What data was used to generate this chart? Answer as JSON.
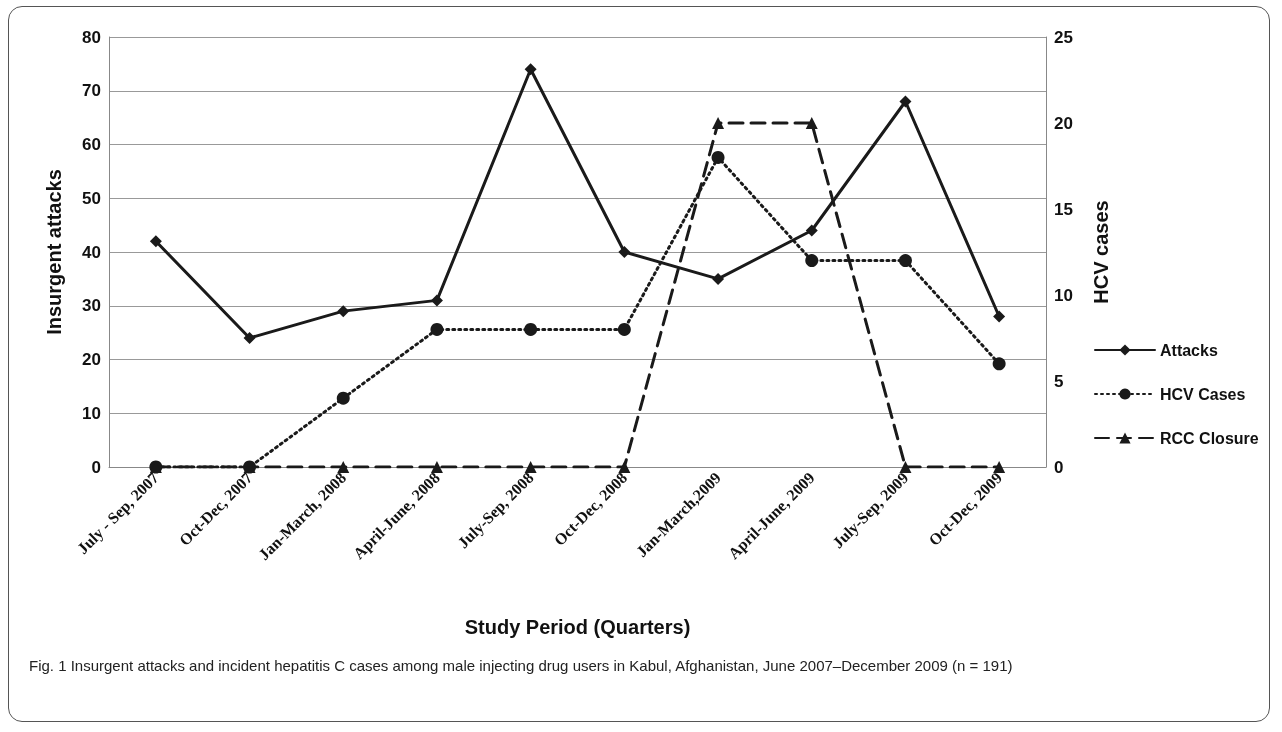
{
  "chart_data": {
    "type": "line",
    "xlabel": "Study Period (Quarters)",
    "ylabel": "Insurgent attacks",
    "y2label": "HCV cases",
    "categories": [
      "July - Sep, 2007",
      "Oct-Dec, 2007",
      "Jan-March, 2008",
      "April-June, 2008",
      "July-Sep, 2008",
      "Oct-Dec, 2008",
      "Jan-March,2009",
      "April-June, 2009",
      "July-Sep, 2009",
      "Oct-Dec, 2009"
    ],
    "series": [
      {
        "name": "Attacks",
        "color": "#1a1a1a",
        "marker": "diamond",
        "line_style": "solid",
        "values": [
          42,
          24,
          29,
          31,
          74,
          40,
          35,
          44,
          68,
          28
        ]
      },
      {
        "name": "HCV Cases",
        "color": "#1a1a1a",
        "marker": "circle",
        "line_style": "dotted",
        "axis": "y2",
        "values": [
          0,
          0,
          4,
          8,
          8,
          8,
          18,
          12,
          12,
          6
        ]
      },
      {
        "name": "RCC Closure",
        "color": "#1a1a1a",
        "marker": "triangle",
        "line_style": "dashed",
        "axis": "y2",
        "values": [
          0,
          0,
          0,
          0,
          0,
          0,
          20,
          20,
          0,
          0
        ]
      }
    ],
    "ylim": [
      0,
      80
    ],
    "yticks": [
      0,
      10,
      20,
      30,
      40,
      50,
      60,
      70,
      80
    ],
    "y2lim": [
      0,
      25
    ],
    "y2ticks": [
      0,
      5,
      10,
      15,
      20,
      25
    ],
    "grid": "y",
    "legend": "right",
    "annotations": [
      "Fig. 1 Insurgent attacks and incident hepatitis C cases among male injecting drug users in Kabul, Afghanistan, June 2007–December 2009 (n = 191)"
    ]
  }
}
